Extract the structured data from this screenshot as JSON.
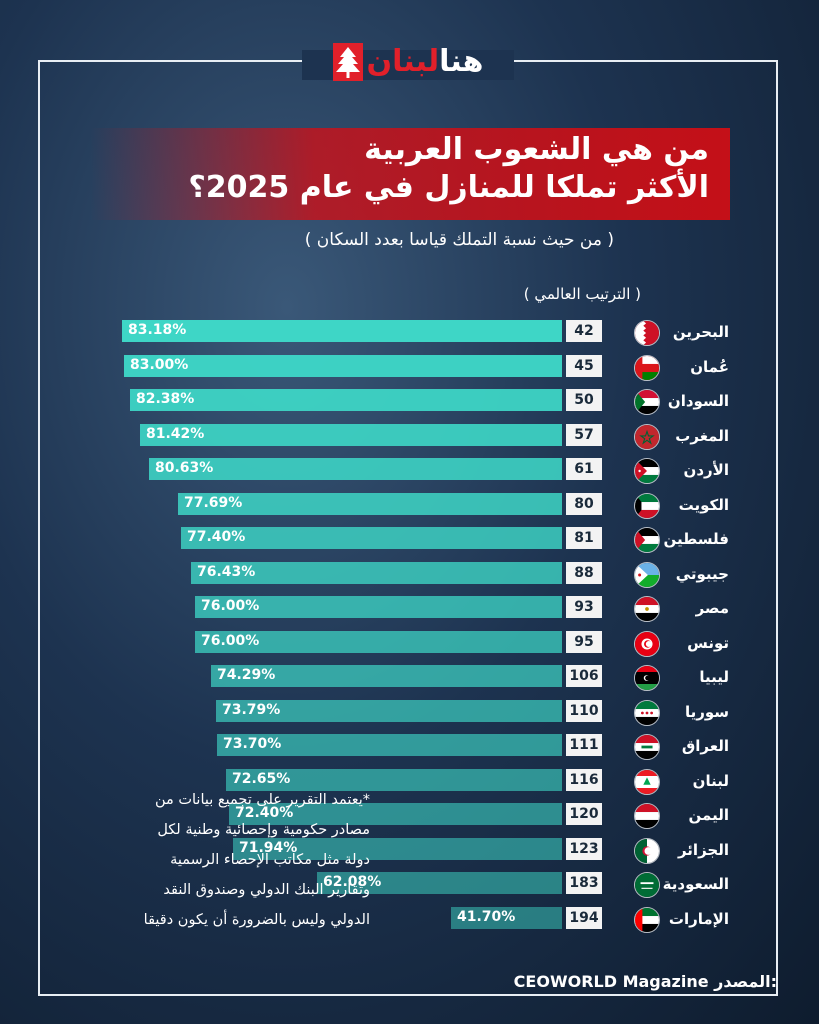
{
  "logo": {
    "part_white": "هنا",
    "part_red": "لبنان",
    "emblem": "cedar-icon"
  },
  "title_line1": "من هي الشعوب العربية",
  "title_line2": "الأكثر تملكا للمنازل في عام 2025؟",
  "subtitle": "( من حيث نسبة التملك قياسا بعدد السكان )",
  "rank_header": "( الترتيب العالمي )",
  "note_lines": [
    "*يعتمد التقرير على تجميع بيانات من",
    "مصادر حكومية وإحصائية وطنية لكل",
    "دولة مثل مكاتب الإحصاء الرسمية",
    "وتقارير البنك الدولي وصندوق النقد",
    "الدولي وليس بالضرورة أن يكون دقيقا"
  ],
  "source_label": "المصدر:",
  "source_name": "CEOWORLD Magazine",
  "colors": {
    "bar": "#3ed6c6",
    "accent_red": "#c41018",
    "background": "#1d3350"
  },
  "chart_data": {
    "type": "bar",
    "orientation": "horizontal",
    "categories": [
      "البحرين",
      "عُمان",
      "السودان",
      "المغرب",
      "الأردن",
      "الكويت",
      "فلسطين",
      "جيبوتي",
      "مصر",
      "تونس",
      "ليبيا",
      "سوريا",
      "العراق",
      "لبنان",
      "اليمن",
      "الجزائر",
      "السعودية",
      "الإمارات"
    ],
    "values": [
      83.18,
      83.0,
      82.38,
      81.42,
      80.63,
      77.69,
      77.4,
      76.43,
      76.0,
      76.0,
      74.29,
      73.79,
      73.7,
      72.65,
      72.4,
      71.94,
      62.08,
      41.7
    ],
    "value_labels": [
      "83.18%",
      "83.00%",
      "82.38%",
      "81.42%",
      "80.63%",
      "77.69%",
      "77.40%",
      "76.43%",
      "76.00%",
      "76.00%",
      "74.29%",
      "73.79%",
      "73.70%",
      "72.65%",
      "72.40%",
      "71.94%",
      "62.08%",
      "41.70%"
    ],
    "world_rank": [
      "42",
      "45",
      "50",
      "57",
      "61",
      "80",
      "81",
      "88",
      "93",
      "95",
      "106",
      "110",
      "111",
      "116",
      "120",
      "123",
      "183",
      "194"
    ],
    "flags": [
      "bahrain-flag-icon",
      "oman-flag-icon",
      "sudan-flag-icon",
      "morocco-flag-icon",
      "jordan-flag-icon",
      "kuwait-flag-icon",
      "palestine-flag-icon",
      "djibouti-flag-icon",
      "egypt-flag-icon",
      "tunisia-flag-icon",
      "libya-flag-icon",
      "syria-flag-icon",
      "iraq-flag-icon",
      "lebanon-flag-icon",
      "yemen-flag-icon",
      "algeria-flag-icon",
      "saudi-flag-icon",
      "uae-flag-icon"
    ],
    "unit": "%",
    "title": "",
    "xlabel": "",
    "ylabel": ""
  }
}
